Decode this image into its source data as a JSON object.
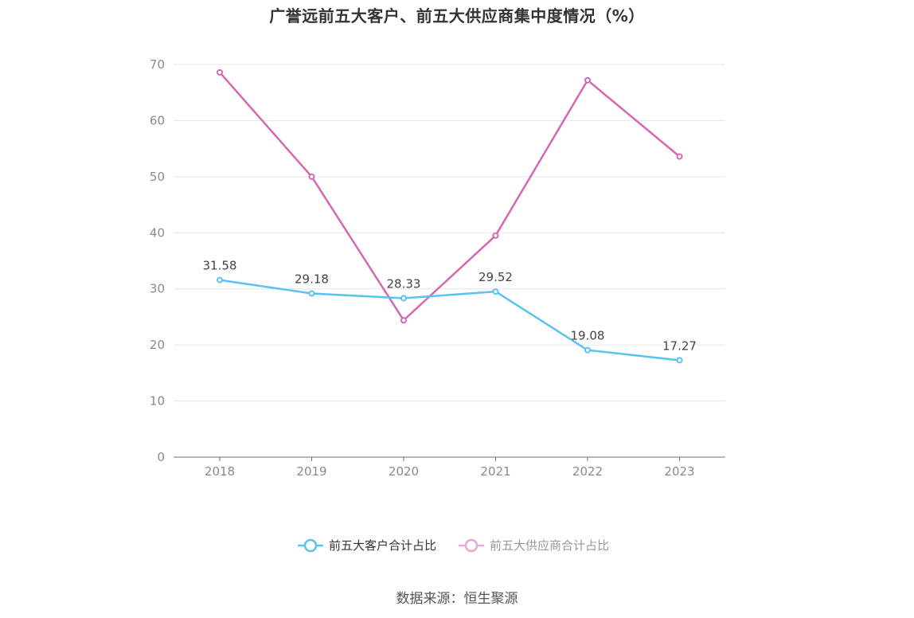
{
  "chart_data": {
    "type": "line",
    "title": "广誉远前五大客户、前五大供应商集中度情况（%）",
    "categories": [
      "2018",
      "2019",
      "2020",
      "2021",
      "2022",
      "2023"
    ],
    "y_ticks": [
      "0",
      "10",
      "20",
      "30",
      "40",
      "50",
      "60",
      "70"
    ],
    "ylim": [
      0,
      70
    ],
    "grid": true,
    "legend_position": "bottom-center",
    "series": [
      {
        "name": "前五大客户合计占比",
        "color": "#5bc2f0",
        "values": [
          31.58,
          29.18,
          28.33,
          29.52,
          19.08,
          17.27
        ],
        "labels": [
          "31.58",
          "29.18",
          "28.33",
          "29.52",
          "19.08",
          "17.27"
        ]
      },
      {
        "name": "前五大供应商合计占比",
        "color": "#d667b2",
        "values": [
          68.6,
          50.0,
          24.4,
          39.5,
          67.2,
          53.6
        ]
      }
    ]
  },
  "source": "数据来源：恒生聚源"
}
